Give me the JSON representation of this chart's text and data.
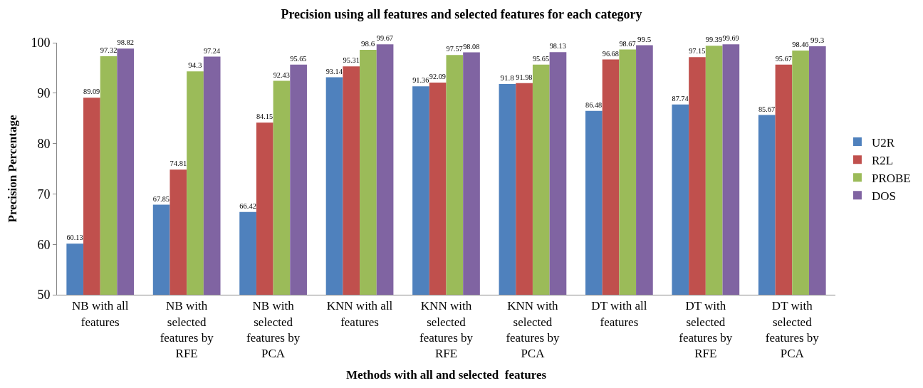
{
  "chart_data": {
    "type": "bar",
    "title": "Precision using all features and selected features for each category",
    "xlabel": "Methods with all and selected  features",
    "ylabel": "Precision Percentage",
    "categories": [
      "NB with all features",
      "NB with selected features by RFE",
      "NB with selected features by PCA",
      "KNN with all features",
      "KNN with selected features by RFE",
      "KNN with selected features by PCA",
      "DT with all features",
      "DT with selected features by RFE",
      "DT with selected features by PCA"
    ],
    "series": [
      {
        "name": "U2R",
        "color": "#4f81bd",
        "values": [
          60.13,
          67.85,
          66.42,
          93.14,
          91.36,
          91.8,
          86.48,
          87.74,
          85.67
        ]
      },
      {
        "name": "R2L",
        "color": "#c0504d",
        "values": [
          89.09,
          74.81,
          84.15,
          95.31,
          92.09,
          91.98,
          96.68,
          97.15,
          95.67
        ]
      },
      {
        "name": "PROBE",
        "color": "#9bbb59",
        "values": [
          97.32,
          94.3,
          92.43,
          98.6,
          97.57,
          95.65,
          98.67,
          99.39,
          98.46
        ]
      },
      {
        "name": "DOS",
        "color": "#8064a2",
        "values": [
          98.82,
          97.24,
          95.65,
          99.67,
          98.08,
          98.13,
          99.5,
          99.69,
          99.3
        ]
      }
    ],
    "ylim": [
      50,
      100
    ],
    "yticks": [
      50,
      60,
      70,
      80,
      90,
      100
    ],
    "data_labels": true,
    "legend": "right"
  }
}
